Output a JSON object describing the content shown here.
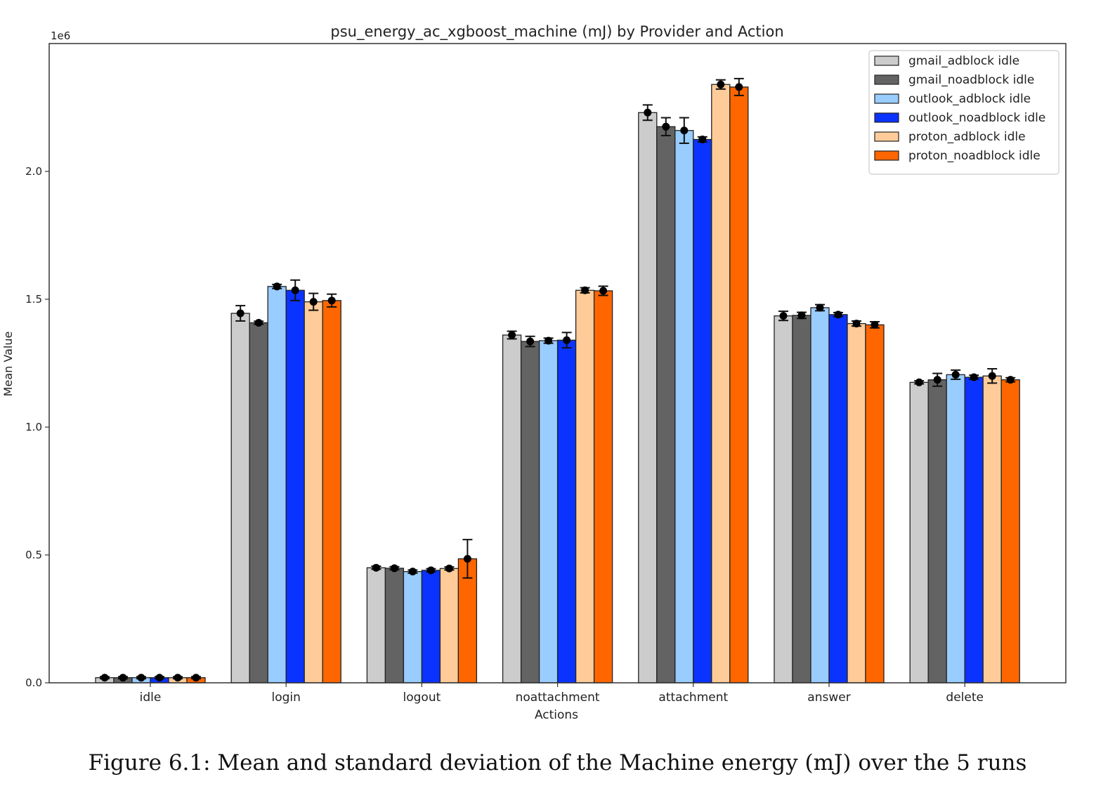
{
  "chart_data": {
    "type": "bar",
    "title": "psu_energy_ac_xgboost_machine (mJ) by Provider and Action",
    "xlabel": "Actions",
    "ylabel": "Mean Value",
    "y_scale_label": "1e6",
    "ylim": [
      0,
      2.5
    ],
    "yticks": [
      "0.0",
      "0.5",
      "1.0",
      "1.5",
      "2.0"
    ],
    "legend_position": "top-right",
    "grid": false,
    "categories": [
      "idle",
      "login",
      "logout",
      "noattachment",
      "attachment",
      "answer",
      "delete"
    ],
    "series": [
      {
        "name": "gmail_adblock idle",
        "color": "#cccccc",
        "values": [
          0.02,
          1.445,
          0.45,
          1.36,
          2.23,
          1.435,
          1.175
        ],
        "errors": [
          0.004,
          0.03,
          0.006,
          0.015,
          0.03,
          0.018,
          0.006
        ]
      },
      {
        "name": "gmail_noadblock idle",
        "color": "#636363",
        "values": [
          0.02,
          1.408,
          0.448,
          1.335,
          2.175,
          1.437,
          1.185
        ],
        "errors": [
          0.004,
          0.006,
          0.006,
          0.02,
          0.035,
          0.012,
          0.025
        ]
      },
      {
        "name": "outlook_adblock idle",
        "color": "#99ccff",
        "values": [
          0.02,
          1.55,
          0.435,
          1.338,
          2.16,
          1.467,
          1.205
        ],
        "errors": [
          0.004,
          0.008,
          0.006,
          0.01,
          0.05,
          0.012,
          0.018
        ]
      },
      {
        "name": "outlook_noadblock idle",
        "color": "#0a33ff",
        "values": [
          0.02,
          1.535,
          0.44,
          1.34,
          2.125,
          1.44,
          1.195
        ],
        "errors": [
          0.004,
          0.04,
          0.006,
          0.03,
          0.01,
          0.008,
          0.008
        ]
      },
      {
        "name": "proton_adblock idle",
        "color": "#ffcc99",
        "values": [
          0.02,
          1.49,
          0.447,
          1.535,
          2.34,
          1.405,
          1.2
        ],
        "errors": [
          0.004,
          0.033,
          0.006,
          0.01,
          0.018,
          0.01,
          0.028
        ]
      },
      {
        "name": "proton_noadblock idle",
        "color": "#ff6600",
        "values": [
          0.02,
          1.495,
          0.485,
          1.533,
          2.33,
          1.4,
          1.185
        ],
        "errors": [
          0.004,
          0.025,
          0.075,
          0.018,
          0.033,
          0.012,
          0.008
        ]
      }
    ]
  },
  "caption": "Figure 6.1: Mean and standard deviation of the Machine energy (mJ) over the 5 runs"
}
